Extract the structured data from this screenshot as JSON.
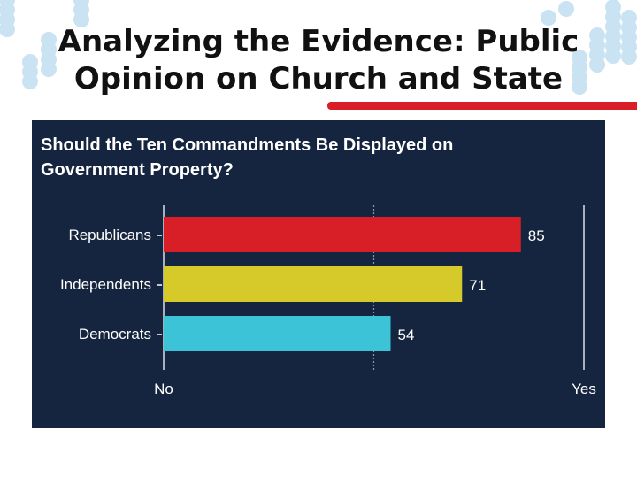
{
  "slide": {
    "title_line1": "Analyzing the Evidence: Public",
    "title_line2": "Opinion on Church and State"
  },
  "colors": {
    "panel": "#15253f",
    "rule": "#d81e27",
    "decor_dot": "#c9e3f3",
    "text": "#ffffff",
    "axis": "#d9dee6"
  },
  "chart_data": {
    "type": "bar",
    "orientation": "horizontal",
    "title_line1": "Should the Ten Commandments Be Displayed on",
    "title_line2": "Government Property?",
    "categories": [
      "Republicans",
      "Independents",
      "Democrats"
    ],
    "values": [
      85,
      71,
      54
    ],
    "colors": [
      "#d81e27",
      "#d5ca2a",
      "#3cc3d7"
    ],
    "xlim": [
      0,
      100
    ],
    "reference_line": 50,
    "axis_end_labels": [
      "No",
      "Yes"
    ],
    "grid": false,
    "legend": "none"
  }
}
